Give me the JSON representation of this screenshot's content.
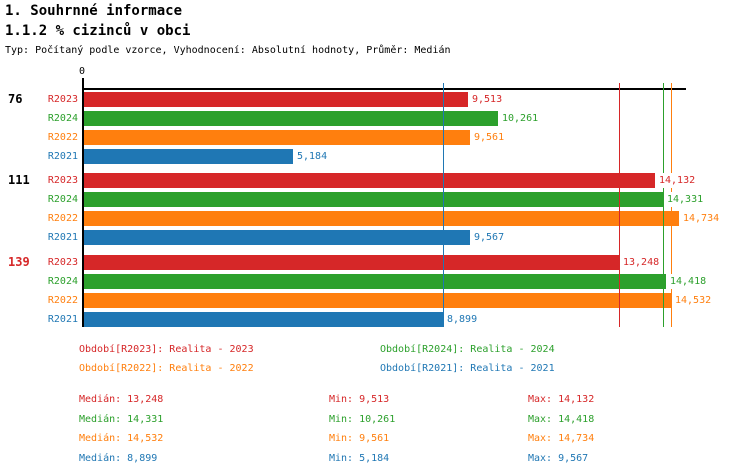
{
  "header": {
    "title": "1. Souhrnné informace",
    "subtitle": "1.1.2 % cizinců v obci",
    "meta": "Typ: Počítaný podle vzorce, Vyhodnocení: Absolutní hodnoty, Průměr: Medián"
  },
  "chart_data": {
    "type": "bar",
    "orientation": "horizontal",
    "title": "1.1.2 % cizinců v obci",
    "x_axis": {
      "origin_label": "0",
      "min": 0,
      "max_estimate": 15000,
      "gridlines": false
    },
    "legend_position": "bottom",
    "series_colors": {
      "R2023": "#d62728",
      "R2024": "#2ca02c",
      "R2022": "#ff7f0e",
      "R2021": "#1f77b4"
    },
    "groups": [
      {
        "label": "76",
        "label_color": "#000000",
        "bars": [
          {
            "series": "R2023",
            "value": 9513,
            "display": "9,513"
          },
          {
            "series": "R2024",
            "value": 10261,
            "display": "10,261"
          },
          {
            "series": "R2022",
            "value": 9561,
            "display": "9,561"
          },
          {
            "series": "R2021",
            "value": 5184,
            "display": "5,184"
          }
        ]
      },
      {
        "label": "111",
        "label_color": "#000000",
        "bars": [
          {
            "series": "R2023",
            "value": 14132,
            "display": "14,132"
          },
          {
            "series": "R2024",
            "value": 14331,
            "display": "14,331"
          },
          {
            "series": "R2022",
            "value": 14734,
            "display": "14,734"
          },
          {
            "series": "R2021",
            "value": 9567,
            "display": "9,567"
          }
        ]
      },
      {
        "label": "139",
        "label_color": "#d62728",
        "bars": [
          {
            "series": "R2023",
            "value": 13248,
            "display": "13,248"
          },
          {
            "series": "R2024",
            "value": 14418,
            "display": "14,418"
          },
          {
            "series": "R2022",
            "value": 14532,
            "display": "14,532"
          },
          {
            "series": "R2021",
            "value": 8899,
            "display": "8,899"
          }
        ]
      }
    ],
    "median_lines": [
      {
        "series": "R2021",
        "value": 8899,
        "color": "#1f77b4"
      },
      {
        "series": "R2023",
        "value": 13248,
        "color": "#d62728"
      },
      {
        "series": "R2024",
        "value": 14331,
        "color": "#2ca02c"
      },
      {
        "series": "R2022",
        "value": 14532,
        "color": "#ff7f0e"
      }
    ],
    "legend": {
      "items": [
        {
          "series": "R2023",
          "text": "Období[R2023]: Realita - 2023",
          "color": "#d62728"
        },
        {
          "series": "R2024",
          "text": "Období[R2024]: Realita - 2024",
          "color": "#2ca02c"
        },
        {
          "series": "R2022",
          "text": "Období[R2022]: Realita - 2022",
          "color": "#ff7f0e"
        },
        {
          "series": "R2021",
          "text": "Období[R2021]: Realita - 2021",
          "color": "#1f77b4"
        }
      ]
    },
    "stats": {
      "labels": {
        "median": "Medián",
        "min": "Min",
        "max": "Max"
      },
      "rows": [
        {
          "series": "R2023",
          "color": "#d62728",
          "median": "13,248",
          "min": "9,513",
          "max": "14,132"
        },
        {
          "series": "R2024",
          "color": "#2ca02c",
          "median": "14,331",
          "min": "10,261",
          "max": "14,418"
        },
        {
          "series": "R2022",
          "color": "#ff7f0e",
          "median": "14,532",
          "min": "9,561",
          "max": "14,734"
        },
        {
          "series": "R2021",
          "color": "#1f77b4",
          "median": "8,899",
          "min": "5,184",
          "max": "9,567"
        }
      ]
    }
  }
}
